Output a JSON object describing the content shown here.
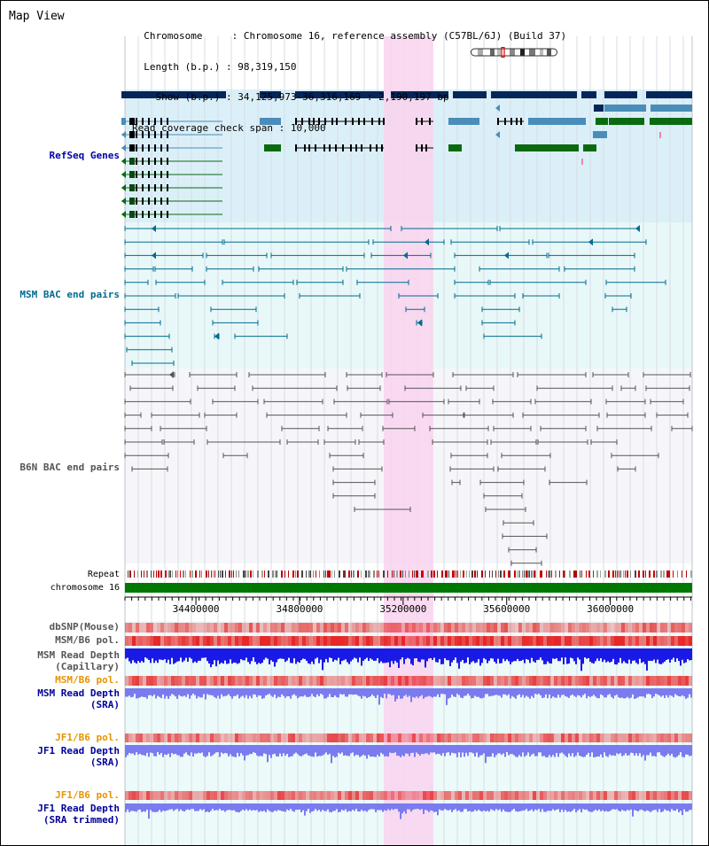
{
  "view_title": "Map View",
  "info": {
    "chromosome_key": "Chromosome",
    "chromosome_value": "Chromosome 16, reference assembly (C57BL/6J) (Build 37)",
    "length_key": "Length (b.p.)",
    "length_value": "98,319,150",
    "show_key": "Show (b.p.)",
    "show_value": "34,125,973-36,316,169 : 2,190,197 bp",
    "span_key": "Read coverage check span",
    "span_value": "10,000"
  },
  "tracks": {
    "refseq": "RefSeq Genes",
    "msm_bac": "MSM BAC end pairs",
    "b6n_bac": "B6N BAC end pairs",
    "repeat": "Repeat",
    "chromosome": "chromosome 16",
    "dbsnp": "dbSNP(Mouse)",
    "msm_b6_pol_1": "MSM/B6 pol.",
    "msm_read_depth_cap_1": "MSM Read Depth",
    "msm_read_depth_cap_2": "(Capillary)",
    "msm_b6_pol_2": "MSM/B6 pol.",
    "msm_read_depth_sra_1": "MSM Read Depth",
    "msm_read_depth_sra_2": "(SRA)",
    "jf1_b6_pol_1": "JF1/B6 pol.",
    "jf1_read_depth_sra_1": "JF1 Read Depth",
    "jf1_read_depth_sra_2": "(SRA)",
    "jf1_b6_pol_2": "JF1/B6 pol.",
    "jf1_read_depth_trim_1": "JF1 Read Depth",
    "jf1_read_depth_trim_2": "(SRA trimmed)"
  },
  "axis": {
    "ticks": [
      "34400000",
      "34800000",
      "35200000",
      "35600000",
      "36000000"
    ],
    "tick_values": [
      34400000,
      34800000,
      35200000,
      35600000,
      36000000
    ]
  },
  "colors": {
    "refseq_label": "#0000aa",
    "msm_bac_label": "#006b8f",
    "b6n_bac_label": "#555555",
    "pol_label": "#e69500",
    "depth_label": "#000099",
    "highlight": "#f9d3ef"
  }
}
